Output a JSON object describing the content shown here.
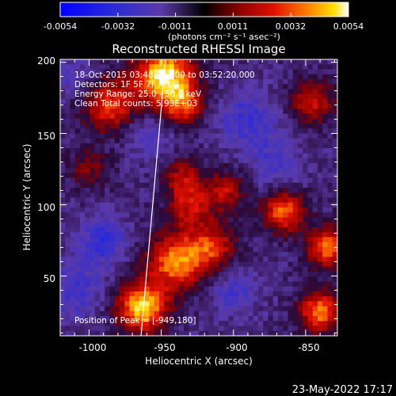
{
  "colorbar": {
    "ticks": [
      "-0.0054",
      "-0.0032",
      "-0.0011",
      "0.0011",
      "0.0032",
      "0.0054"
    ],
    "unit_label": "(photons cm⁻² s⁻¹ asec⁻²)",
    "range": [
      -0.0054,
      0.0054
    ]
  },
  "info": {
    "line1": "18-Oct-2015 03:48:20.000 to 03:52:20.000",
    "line2": "Detectors: 1F 5F 7F Att 0",
    "line3": "Energy Range: 25.0 - 50.0 keV",
    "line4": "Clean     Total counts: 5.93E+03",
    "peak": "Position of Peak = [-949,180]"
  },
  "footer": {
    "date": "23-May-2022 17:17"
  },
  "chart_data": {
    "type": "heatmap",
    "title": "Reconstructed RHESSI Image",
    "xlabel": "Heliocentric X (arcsec)",
    "ylabel": "Heliocentric Y (arcsec)",
    "xlim": [
      -1020,
      -828
    ],
    "ylim": [
      8,
      202
    ],
    "xticks": [
      -1000,
      -950,
      -900,
      -850
    ],
    "yticks": [
      50,
      100,
      150,
      200
    ],
    "colormap": "hot-blue diverging (blue → purple → red → orange → yellow → white)",
    "peak_position": [
      -949,
      180
    ],
    "line": {
      "x": [
        -964,
        -947
      ],
      "y": [
        8,
        202
      ],
      "color": "#ffffff"
    },
    "blobs": [
      {
        "x": -948,
        "y": 190,
        "sigma": 14,
        "value": 0.0054
      },
      {
        "x": -963,
        "y": 28,
        "sigma": 12,
        "value": 0.005
      },
      {
        "x": -985,
        "y": 170,
        "sigma": 13,
        "value": 0.003
      },
      {
        "x": -935,
        "y": 170,
        "sigma": 10,
        "value": 0.0026
      },
      {
        "x": -845,
        "y": 172,
        "sigma": 11,
        "value": 0.0022
      },
      {
        "x": -940,
        "y": 60,
        "sigma": 14,
        "value": 0.0038
      },
      {
        "x": -915,
        "y": 70,
        "sigma": 12,
        "value": 0.0025
      },
      {
        "x": -930,
        "y": 100,
        "sigma": 11,
        "value": 0.0022
      },
      {
        "x": -905,
        "y": 110,
        "sigma": 10,
        "value": 0.0018
      },
      {
        "x": -865,
        "y": 95,
        "sigma": 10,
        "value": 0.0036
      },
      {
        "x": -835,
        "y": 70,
        "sigma": 10,
        "value": 0.0035
      },
      {
        "x": -840,
        "y": 25,
        "sigma": 10,
        "value": 0.0038
      },
      {
        "x": -935,
        "y": 120,
        "sigma": 9,
        "value": 0.0016
      },
      {
        "x": -1000,
        "y": 125,
        "sigma": 10,
        "value": 0.001
      },
      {
        "x": -990,
        "y": 75,
        "sigma": 12,
        "value": -0.0022
      },
      {
        "x": -1010,
        "y": 40,
        "sigma": 14,
        "value": -0.0018
      },
      {
        "x": -890,
        "y": 160,
        "sigma": 14,
        "value": -0.002
      },
      {
        "x": -900,
        "y": 40,
        "sigma": 12,
        "value": -0.0016
      },
      {
        "x": -960,
        "y": 150,
        "sigma": 12,
        "value": -0.0014
      },
      {
        "x": -870,
        "y": 130,
        "sigma": 12,
        "value": -0.0016
      },
      {
        "x": -1010,
        "y": 190,
        "sigma": 10,
        "value": -0.0012
      }
    ]
  }
}
